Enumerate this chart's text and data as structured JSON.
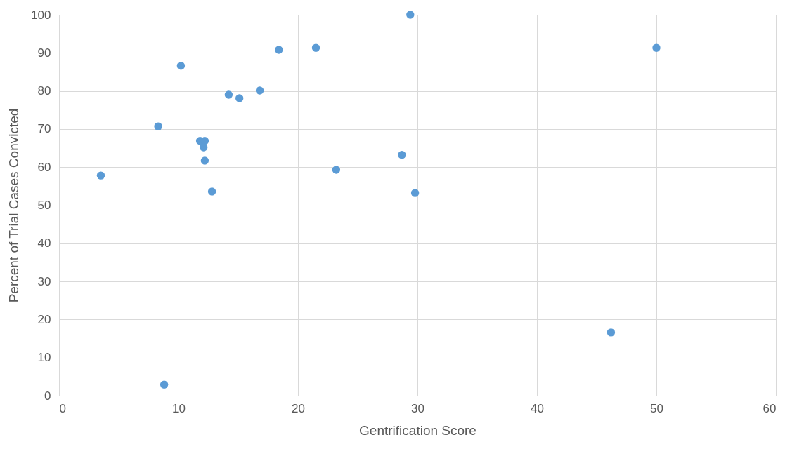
{
  "chart_data": {
    "type": "scatter",
    "xlabel": "Gentrification Score",
    "ylabel": "Percent of Trial Cases Convicted",
    "x": [
      29.4,
      50,
      21.5,
      18.4,
      10.2,
      16.8,
      14.2,
      15.1,
      8.3,
      11.8,
      12.2,
      12.1,
      12.2,
      28.7,
      3.5,
      23.2,
      12.8,
      29.8,
      46.2,
      8.8
    ],
    "values": [
      100,
      91.3,
      91.3,
      90.8,
      86.6,
      80.1,
      79.0,
      78.1,
      70.7,
      66.9,
      66.9,
      65.2,
      61.7,
      63.2,
      57.8,
      59.3,
      53.6,
      53.2,
      16.6,
      2.9
    ],
    "color": "#5b9bd5",
    "marker": "circle",
    "xlim": [
      0,
      60
    ],
    "xticks": [
      0,
      10,
      20,
      30,
      40,
      50,
      60
    ],
    "ylim": [
      0,
      100
    ],
    "yticks": [
      0,
      10,
      20,
      30,
      40,
      50,
      60,
      70,
      80,
      90,
      100
    ],
    "grid": true
  }
}
